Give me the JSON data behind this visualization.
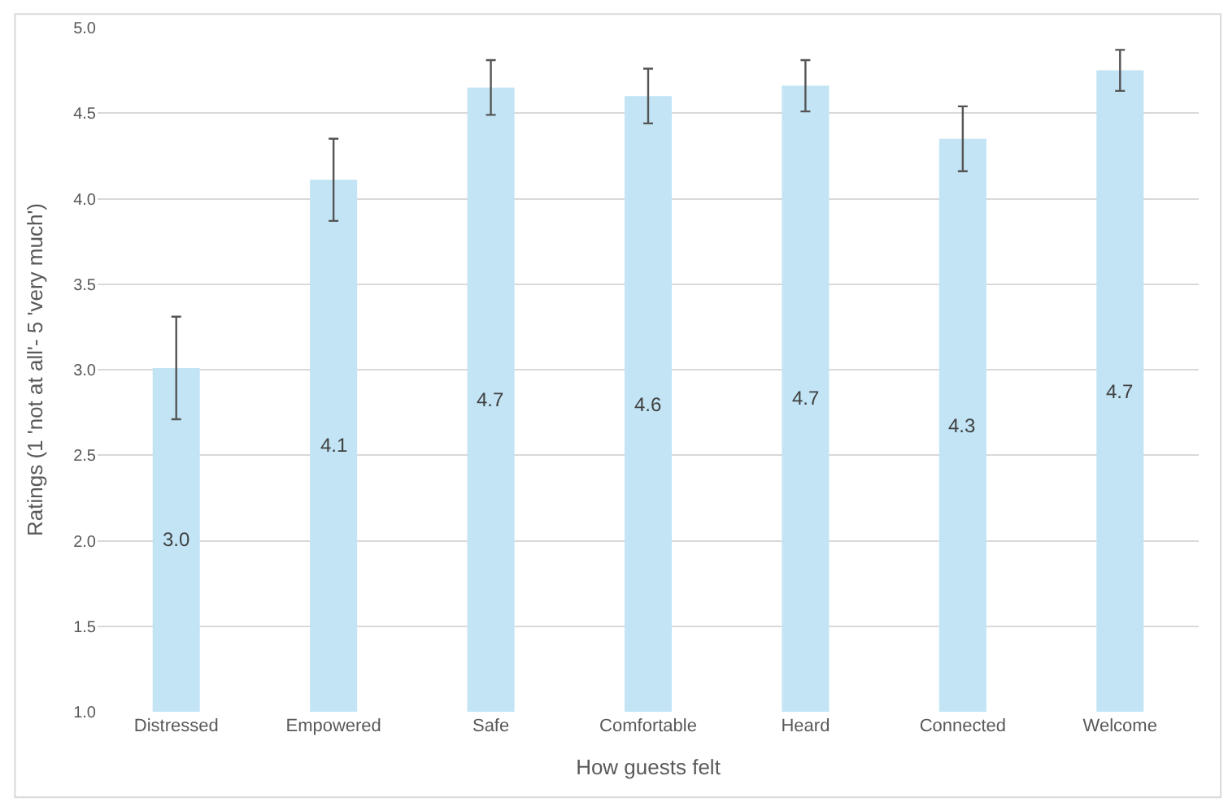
{
  "chart_data": {
    "type": "bar",
    "xlabel": "How guests felt",
    "ylabel": "Ratings (1 'not at all'- 5 'very much')",
    "categories": [
      "Distressed",
      "Empowered",
      "Safe",
      "Comfortable",
      "Heard",
      "Connected",
      "Welcome"
    ],
    "values": [
      3.01,
      4.11,
      4.65,
      4.6,
      4.66,
      4.35,
      4.75
    ],
    "errors": [
      0.3,
      0.24,
      0.16,
      0.16,
      0.15,
      0.19,
      0.12
    ],
    "value_labels": [
      "3.0",
      "4.1",
      "4.7",
      "4.6",
      "4.7",
      "4.3",
      "4.7"
    ],
    "color": "#c2e4f5",
    "ylim": [
      1.0,
      5.0
    ],
    "yticks": [
      {
        "value": 1,
        "label": "1.0"
      },
      {
        "value": 1.5,
        "label": "1.5"
      },
      {
        "value": 2,
        "label": "2.0"
      },
      {
        "value": 2.5,
        "label": "2.5"
      },
      {
        "value": 3,
        "label": "3.0"
      },
      {
        "value": 3.5,
        "label": "3.5"
      },
      {
        "value": 4,
        "label": "4.0"
      },
      {
        "value": 4.5,
        "label": "4.5"
      },
      {
        "value": 5,
        "label": "5.0"
      }
    ],
    "grid": "y"
  }
}
